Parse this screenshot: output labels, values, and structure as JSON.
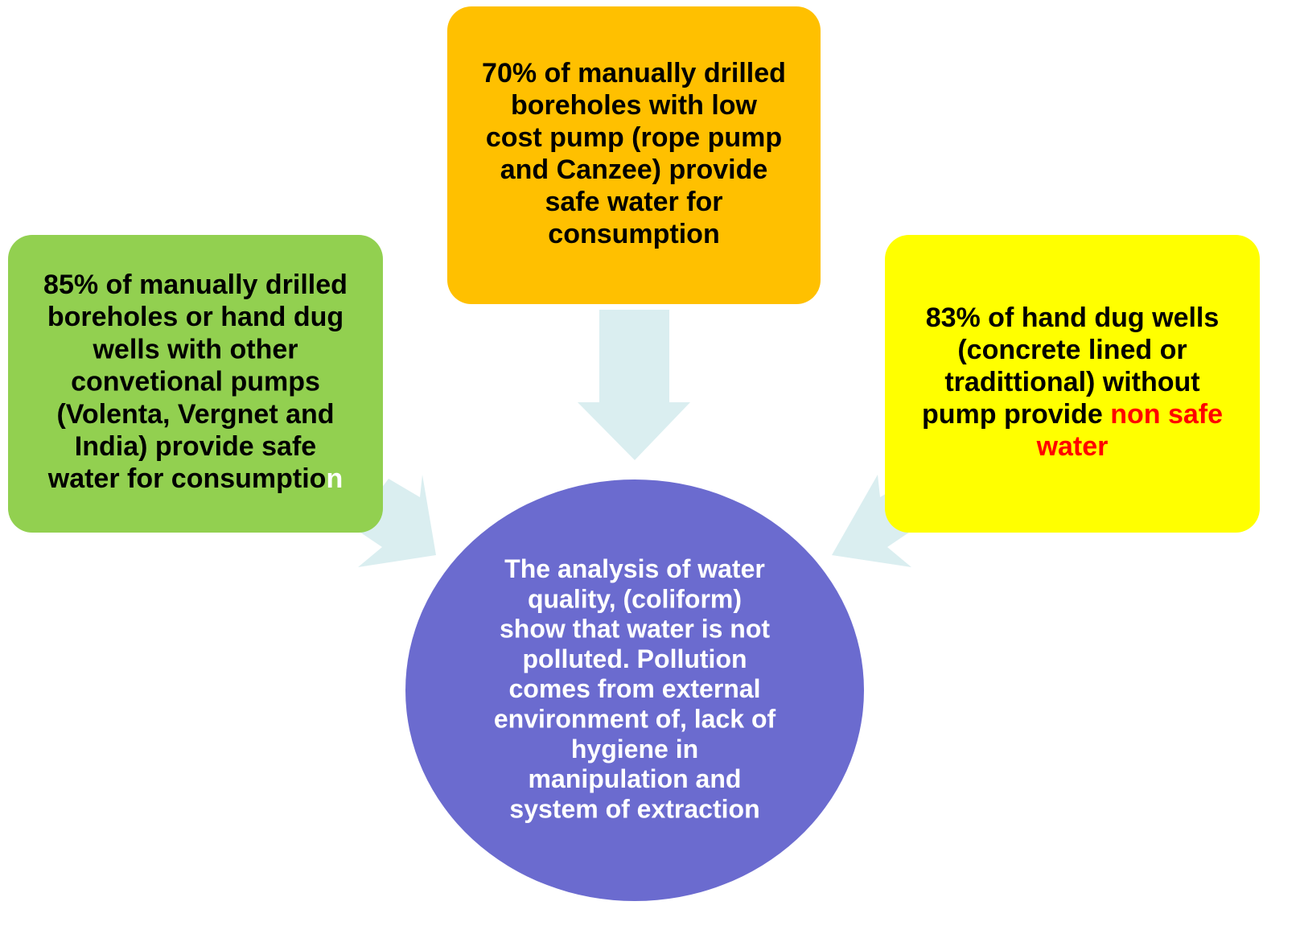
{
  "nodes": [
    {
      "shape": "rounded-box",
      "color": "#92d050",
      "text_color": "#000000",
      "lines": [
        [
          {
            "text": "85% of manually drilled"
          }
        ],
        [
          {
            "text": "boreholes or hand dug"
          }
        ],
        [
          {
            "text": "wells with other"
          }
        ],
        [
          {
            "text": "convetional pumps"
          }
        ],
        [
          {
            "text": "(Volenta, Vergnet and"
          }
        ],
        [
          {
            "text": "India) provide safe"
          }
        ],
        [
          {
            "text": "water for consumptio"
          },
          {
            "text": "n",
            "color": "#ffffff"
          }
        ]
      ]
    },
    {
      "shape": "rounded-box",
      "color": "#ffc000",
      "text_color": "#000000",
      "lines": [
        [
          {
            "text": "70% of manually drilled"
          }
        ],
        [
          {
            "text": "boreholes with low"
          }
        ],
        [
          {
            "text": "cost pump (rope pump"
          }
        ],
        [
          {
            "text": "and Canzee) provide"
          }
        ],
        [
          {
            "text": "safe water for"
          }
        ],
        [
          {
            "text": "consumption"
          }
        ]
      ]
    },
    {
      "shape": "rounded-box",
      "color": "#ffff00",
      "text_color": "#000000",
      "lines": [
        [
          {
            "text": "83% of hand dug wells"
          }
        ],
        [
          {
            "text": "(concrete lined or"
          }
        ],
        [
          {
            "text": "tradittional) without"
          }
        ],
        [
          {
            "text": "pump provide "
          },
          {
            "text": "non safe",
            "color": "#ff0000"
          }
        ],
        [
          {
            "text": "water",
            "color": "#ff0000"
          }
        ]
      ]
    },
    {
      "shape": "circle",
      "color": "#6b6bcf",
      "text_color": "#ffffff",
      "lines": [
        [
          {
            "text": "The analysis of water"
          }
        ],
        [
          {
            "text": "quality, (coliform)"
          }
        ],
        [
          {
            "text": "show that water is not"
          }
        ],
        [
          {
            "text": "polluted. Pollution"
          }
        ],
        [
          {
            "text": "comes from external"
          }
        ],
        [
          {
            "text": "environment of, lack of"
          }
        ],
        [
          {
            "text": "hygiene in"
          }
        ],
        [
          {
            "text": "manipulation and"
          }
        ],
        [
          {
            "text": "system of extraction"
          }
        ]
      ]
    }
  ]
}
